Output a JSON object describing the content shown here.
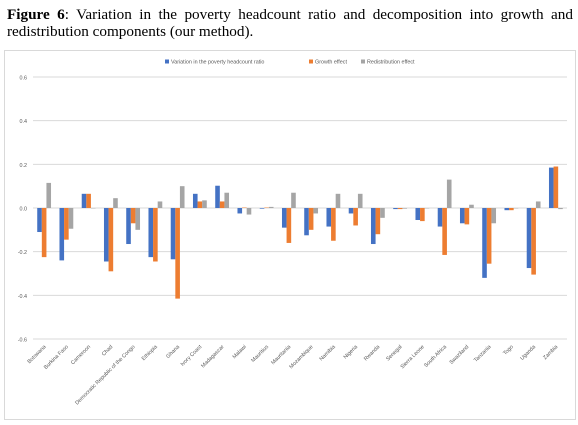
{
  "caption": {
    "label": "Figure 6",
    "text": ": Variation in the poverty headcount ratio and decomposition into growth and redistribution components (our method)."
  },
  "colors": {
    "variation": "#4472c4",
    "growth": "#ed7d31",
    "redistribution": "#a5a5a5",
    "gridline": "#d9d9d9",
    "axis_text": "#595959"
  },
  "chart_data": {
    "type": "bar",
    "title": "",
    "xlabel": "",
    "ylabel": "",
    "ylim": [
      -0.6,
      0.6
    ],
    "yticks": [
      -0.6,
      -0.4,
      -0.2,
      0.0,
      0.2,
      0.4,
      0.6
    ],
    "ytick_labels": [
      "-0.6",
      "-0.4",
      "-0.2",
      "0.0",
      "0.2",
      "0.4",
      "0.6"
    ],
    "grid": "horizontal",
    "legend_position": "top",
    "categories": [
      "Botswana",
      "Burkina Faso",
      "Cameroon",
      "Chad",
      "Democratic Republic of the Congo",
      "Ethiopia",
      "Ghana",
      "Ivory Coast",
      "Madagascar",
      "Malawi",
      "Mauritius",
      "Mauritania",
      "Mozambique",
      "Namibia",
      "Nigeria",
      "Rwanda",
      "Senegal",
      "Sierra Leone",
      "South Africa",
      "Swaziland",
      "Tanzania",
      "Togo",
      "Uganda",
      "Zambia"
    ],
    "series": [
      {
        "name": "Variation in the poverty headcount ratio",
        "color_key": "variation",
        "values": [
          -0.11,
          -0.24,
          0.065,
          -0.245,
          -0.165,
          -0.225,
          -0.235,
          0.065,
          0.102,
          -0.025,
          -0.003,
          -0.09,
          -0.125,
          -0.085,
          -0.025,
          -0.165,
          -0.005,
          -0.055,
          -0.085,
          -0.07,
          -0.32,
          -0.01,
          -0.275,
          0.185
        ]
      },
      {
        "name": "Growth effect",
        "color_key": "growth",
        "values": [
          -0.225,
          -0.145,
          0.065,
          -0.29,
          -0.07,
          -0.245,
          -0.415,
          0.03,
          0.03,
          0.002,
          0.002,
          -0.16,
          -0.1,
          -0.15,
          -0.08,
          -0.12,
          -0.005,
          -0.06,
          -0.215,
          -0.075,
          -0.255,
          -0.01,
          -0.305,
          0.19
        ]
      },
      {
        "name": "Redistribution effect",
        "color_key": "redistribution",
        "values": [
          0.115,
          -0.095,
          0.0,
          0.045,
          -0.1,
          0.03,
          0.1,
          0.035,
          0.07,
          -0.03,
          0.005,
          0.07,
          -0.025,
          0.065,
          0.065,
          -0.045,
          -0.003,
          0.0,
          0.13,
          0.015,
          -0.07,
          0.0,
          0.03,
          -0.005
        ]
      }
    ]
  }
}
